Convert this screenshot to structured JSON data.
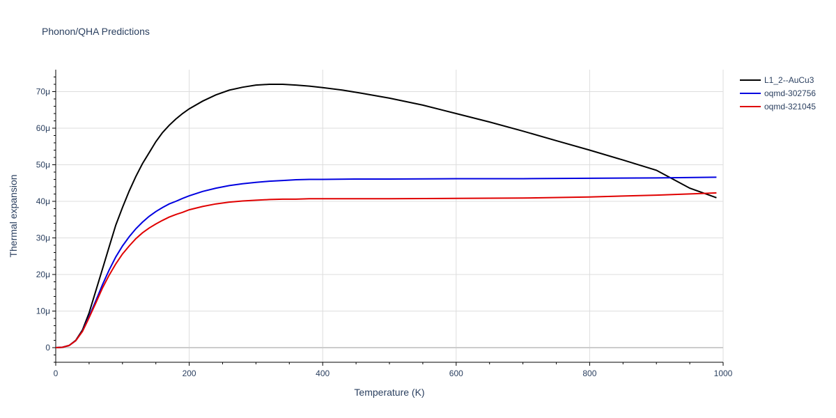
{
  "chart_data": {
    "type": "line",
    "title": "Phonon/QHA Predictions",
    "xlabel": "Temperature (K)",
    "ylabel": "Thermal expansion",
    "xlim": [
      0,
      1000
    ],
    "ylim": [
      -4e-06,
      7.6e-05
    ],
    "x_ticks": [
      0,
      200,
      400,
      600,
      800,
      1000
    ],
    "x_tick_labels": [
      "0",
      "200",
      "400",
      "600",
      "800",
      "1000"
    ],
    "y_ticks": [
      0,
      1e-05,
      2e-05,
      3e-05,
      4e-05,
      5e-05,
      6e-05,
      7e-05
    ],
    "y_tick_labels": [
      "0",
      "10μ",
      "20μ",
      "30μ",
      "40μ",
      "50μ",
      "60μ",
      "70μ"
    ],
    "grid": true,
    "legend_position": "top-right",
    "series": [
      {
        "name": "L1_2--AuCu3",
        "color": "#000000",
        "x": [
          0,
          10,
          20,
          30,
          40,
          50,
          60,
          70,
          80,
          90,
          100,
          110,
          120,
          130,
          140,
          150,
          160,
          170,
          180,
          190,
          200,
          220,
          240,
          260,
          280,
          300,
          320,
          340,
          360,
          380,
          400,
          430,
          460,
          500,
          550,
          600,
          650,
          700,
          750,
          800,
          850,
          900,
          950,
          990
        ],
        "y": [
          0,
          1e-07,
          6e-07,
          2e-06,
          4.8e-06,
          9.5e-06,
          1.55e-05,
          2.15e-05,
          2.75e-05,
          3.35e-05,
          3.83e-05,
          4.28e-05,
          4.68e-05,
          5.03e-05,
          5.33e-05,
          5.63e-05,
          5.88e-05,
          6.08e-05,
          6.25e-05,
          6.4e-05,
          6.53e-05,
          6.74e-05,
          6.91e-05,
          7.04e-05,
          7.12e-05,
          7.18e-05,
          7.2e-05,
          7.2e-05,
          7.18e-05,
          7.15e-05,
          7.11e-05,
          7.04e-05,
          6.95e-05,
          6.82e-05,
          6.63e-05,
          6.4e-05,
          6.17e-05,
          5.92e-05,
          5.66e-05,
          5.4e-05,
          5.13e-05,
          4.85e-05,
          4.36e-05,
          4.1e-05
        ]
      },
      {
        "name": "oqmd-302756",
        "color": "#0000e0",
        "x": [
          0,
          10,
          20,
          30,
          40,
          50,
          60,
          70,
          80,
          90,
          100,
          110,
          120,
          130,
          140,
          150,
          160,
          170,
          180,
          190,
          200,
          220,
          240,
          260,
          280,
          300,
          320,
          340,
          360,
          380,
          400,
          450,
          500,
          600,
          700,
          800,
          900,
          990
        ],
        "y": [
          0,
          1e-07,
          6e-07,
          1.9e-06,
          4.5e-06,
          8.5e-06,
          1.28e-05,
          1.72e-05,
          2.12e-05,
          2.48e-05,
          2.78e-05,
          3.03e-05,
          3.25e-05,
          3.43e-05,
          3.59e-05,
          3.72e-05,
          3.83e-05,
          3.93e-05,
          4e-05,
          4.08e-05,
          4.15e-05,
          4.27e-05,
          4.36e-05,
          4.43e-05,
          4.48e-05,
          4.52e-05,
          4.55e-05,
          4.57e-05,
          4.59e-05,
          4.6e-05,
          4.6e-05,
          4.61e-05,
          4.61e-05,
          4.62e-05,
          4.62e-05,
          4.63e-05,
          4.64e-05,
          4.66e-05
        ]
      },
      {
        "name": "oqmd-321045",
        "color": "#e00000",
        "x": [
          0,
          10,
          20,
          30,
          40,
          50,
          60,
          70,
          80,
          90,
          100,
          110,
          120,
          130,
          140,
          150,
          160,
          170,
          180,
          190,
          200,
          220,
          240,
          260,
          280,
          300,
          320,
          340,
          360,
          380,
          400,
          450,
          500,
          600,
          700,
          800,
          900,
          990
        ],
        "y": [
          0,
          1e-07,
          6e-07,
          1.9e-06,
          4.4e-06,
          8.2e-06,
          1.22e-05,
          1.63e-05,
          1.98e-05,
          2.29e-05,
          2.56e-05,
          2.78e-05,
          2.98e-05,
          3.14e-05,
          3.27e-05,
          3.38e-05,
          3.48e-05,
          3.57e-05,
          3.64e-05,
          3.7e-05,
          3.77e-05,
          3.86e-05,
          3.93e-05,
          3.98e-05,
          4.01e-05,
          4.03e-05,
          4.05e-05,
          4.06e-05,
          4.06e-05,
          4.07e-05,
          4.07e-05,
          4.07e-05,
          4.07e-05,
          4.08e-05,
          4.09e-05,
          4.12e-05,
          4.17e-05,
          4.23e-05
        ]
      }
    ]
  }
}
